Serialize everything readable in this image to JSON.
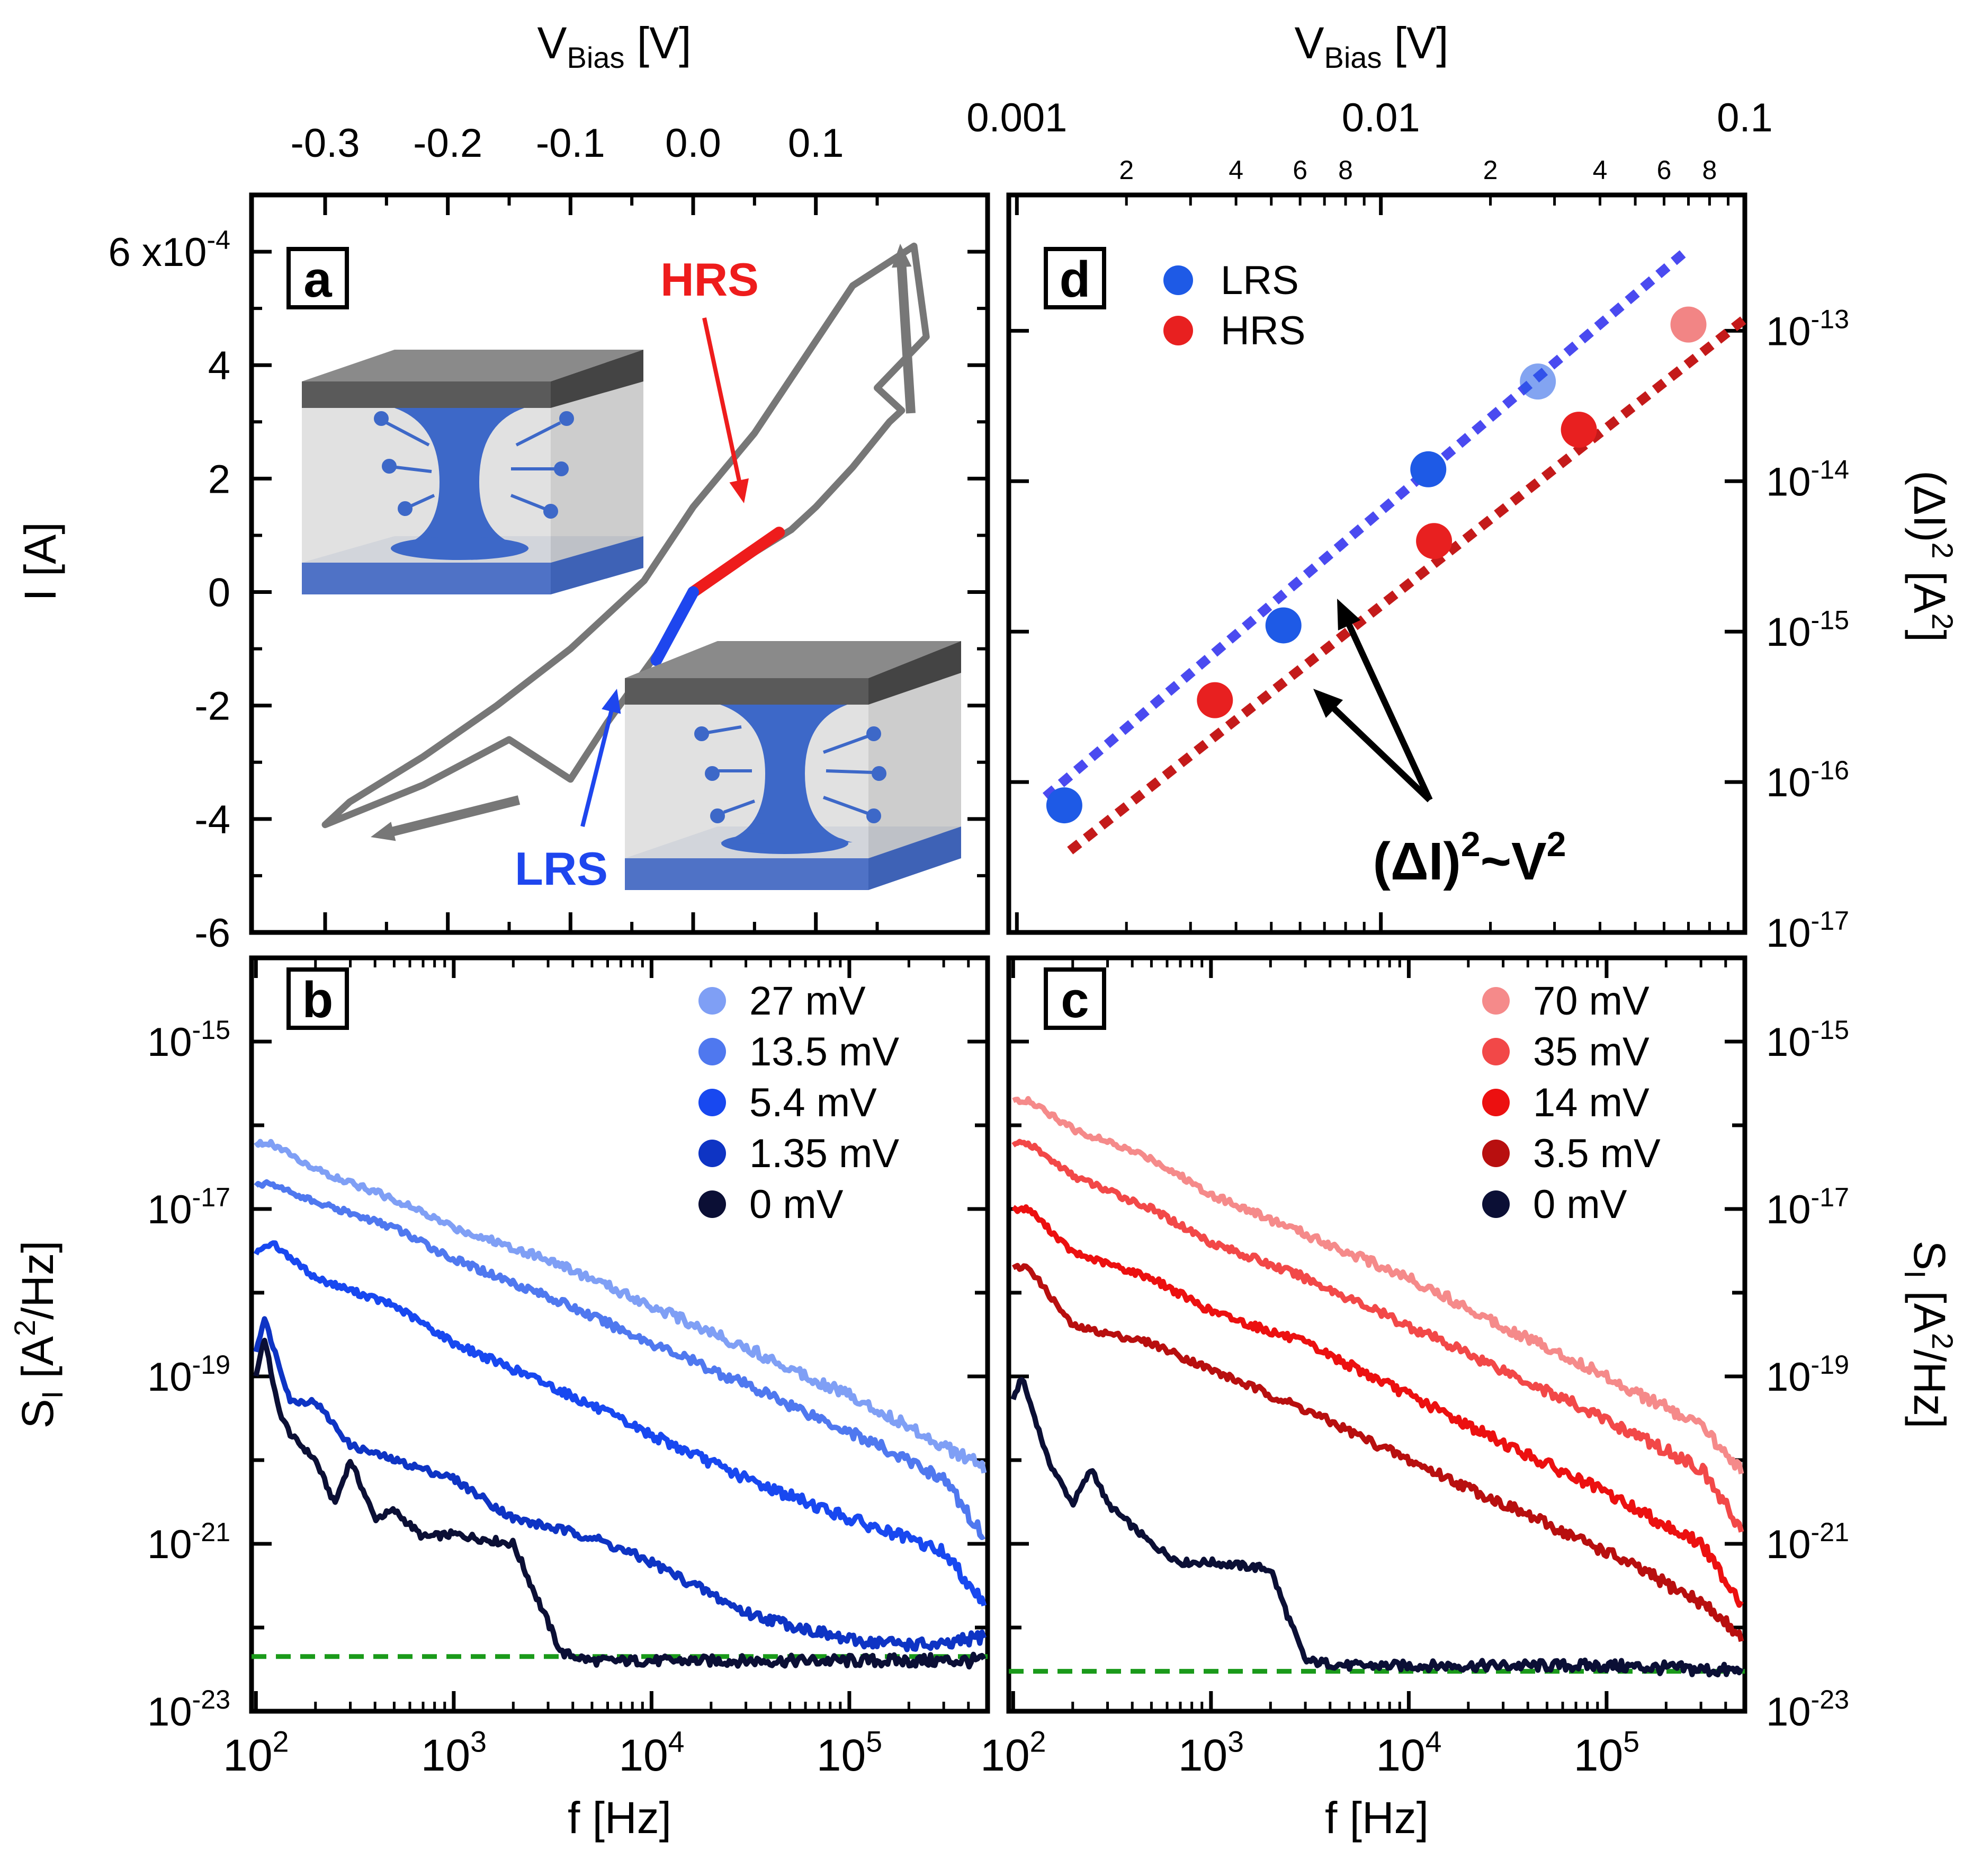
{
  "colors": {
    "iv": "#777777",
    "lrs_segment": "#1e46ee",
    "hrs_segment": "#ee1c1c",
    "lrs_fit": "#4a4af0",
    "hrs_fit": "#c41a1a",
    "lrs_points": "#1e5ae6",
    "hrs_points": "#e82020",
    "noise_floor": "#1a9a1a",
    "zero_mV": "#0b0f35"
  },
  "chart_data": [
    {
      "panel": "a",
      "type": "line",
      "title": "",
      "panel_label": "a",
      "xlabel": "V",
      "xlabel_sub": "Bias",
      "xlabel_unit": " [V]",
      "ylabel": "I [A]",
      "xlim": [
        -0.36,
        0.24
      ],
      "ylim": [
        -0.0006,
        0.0007
      ],
      "x_ticks": [
        -0.3,
        -0.2,
        -0.1,
        0.0,
        0.1
      ],
      "x_tick_labels": [
        "-0.3",
        "-0.2",
        "-0.1",
        "0.0",
        "0.1"
      ],
      "y_ticks": [
        -0.0006,
        -0.0004,
        -0.0002,
        0,
        0.0002,
        0.0004,
        0.0006
      ],
      "y_tick_labels": [
        "-6",
        "-4",
        "-2",
        "0",
        "2",
        "4",
        "6 x10"
      ],
      "y_tick_exponent": "-4",
      "annotations": [
        "HRS",
        "LRS"
      ],
      "series": [
        {
          "name": "I-V hysteresis loop",
          "x": [
            0.0,
            0.02,
            0.05,
            0.08,
            0.1,
            0.13,
            0.16,
            0.17,
            0.15,
            0.19,
            0.18,
            0.13,
            0.05,
            0.0,
            -0.04,
            -0.1,
            -0.16,
            -0.22,
            -0.28,
            -0.3,
            -0.22,
            -0.15,
            -0.1,
            -0.07,
            -0.03,
            0.0
          ],
          "y": [
            0.0,
            3e-05,
            7e-05,
            0.00011,
            0.00015,
            0.00022,
            0.0003,
            0.00032,
            0.00036,
            0.00045,
            0.00061,
            0.00054,
            0.00028,
            0.00015,
            2e-05,
            -0.0001,
            -0.0002,
            -0.00029,
            -0.00037,
            -0.00041,
            -0.00034,
            -0.00026,
            -0.00033,
            -0.00023,
            -0.00011,
            0.0
          ]
        },
        {
          "name": "HRS",
          "x": [
            0.0,
            0.07
          ],
          "y": [
            0.0,
            0.000105
          ]
        },
        {
          "name": "LRS",
          "x": [
            -0.03,
            0.0
          ],
          "y": [
            -0.00012,
            0.0
          ]
        }
      ]
    },
    {
      "panel": "b",
      "type": "line",
      "title": "",
      "panel_label": "b",
      "xlabel": "f [Hz]",
      "ylabel": "S",
      "ylabel_sub": "I",
      "ylabel_unit": " [A",
      "ylabel_sup": "2",
      "ylabel_tail": "/Hz]",
      "xscale": "log",
      "yscale": "log",
      "xlim": [
        95,
        500000
      ],
      "ylim": [
        1e-23,
        1e-14
      ],
      "x_ticks": [
        100,
        1000,
        10000,
        100000
      ],
      "x_tick_labels": [
        {
          "base": "10",
          "exp": "2"
        },
        {
          "base": "10",
          "exp": "3"
        },
        {
          "base": "10",
          "exp": "4"
        },
        {
          "base": "10",
          "exp": "5"
        }
      ],
      "y_ticks": [
        1e-15,
        1e-17,
        1e-19,
        1e-21,
        1e-23
      ],
      "y_tick_labels": [
        {
          "base": "10",
          "exp": "-15"
        },
        {
          "base": "10",
          "exp": "-17"
        },
        {
          "base": "10",
          "exp": "-19"
        },
        {
          "base": "10",
          "exp": "-21"
        },
        {
          "base": "10",
          "exp": "-23"
        }
      ],
      "noise_floor": 4.5e-23,
      "legend_position": "top-right",
      "series": [
        {
          "name": "27 mV",
          "color": "#7f9ff5",
          "x": [
            100,
            120,
            200,
            500,
            1000,
            3000,
            10000,
            30000,
            100000,
            300000,
            480000
          ],
          "y": [
            6e-17,
            6e-17,
            3e-17,
            1.3e-17,
            6e-18,
            2.5e-18,
            7e-19,
            2.2e-19,
            6e-20,
            1.5e-20,
            8e-21
          ]
        },
        {
          "name": "13.5 mV",
          "color": "#4f78ef",
          "x": [
            100,
            120,
            200,
            500,
            1000,
            3000,
            10000,
            30000,
            100000,
            300000,
            480000
          ],
          "y": [
            2e-17,
            2e-17,
            1.2e-17,
            6e-18,
            2.5e-18,
            9e-19,
            2.5e-19,
            8e-20,
            2.2e-20,
            6e-21,
            1.2e-21
          ]
        },
        {
          "name": "5.4 mV",
          "color": "#1848f0",
          "x": [
            100,
            120,
            200,
            500,
            1000,
            3000,
            10000,
            30000,
            100000,
            300000,
            480000
          ],
          "y": [
            3e-18,
            4e-18,
            1.5e-18,
            7e-19,
            2.5e-19,
            8e-20,
            2e-20,
            6e-21,
            2e-21,
            8e-22,
            2e-22
          ]
        },
        {
          "name": "1.35 mV",
          "color": "#0e34c4",
          "x": [
            100,
            110,
            150,
            200,
            300,
            500,
            1000,
            2000,
            5000,
            10000,
            30000,
            100000,
            300000,
            480000
          ],
          "y": [
            2e-19,
            5e-19,
            5e-20,
            5e-20,
            1.5e-20,
            1e-20,
            6e-21,
            2e-21,
            1.2e-21,
            6e-22,
            1.5e-22,
            7e-23,
            6e-23,
            8e-23
          ]
        },
        {
          "name": "0 mV",
          "color": "#0b0f35",
          "x": [
            100,
            110,
            130,
            150,
            200,
            250,
            300,
            400,
            500,
            700,
            1000,
            2000,
            2500,
            3500,
            5000,
            10000,
            100000,
            480000
          ],
          "y": [
            1e-19,
            3e-19,
            4e-20,
            2e-20,
            1e-20,
            3e-21,
            1e-20,
            2e-21,
            2.5e-21,
            1.2e-21,
            1.3e-21,
            1e-21,
            3e-22,
            5e-23,
            4e-23,
            4e-23,
            4e-23,
            4e-23
          ]
        }
      ]
    },
    {
      "panel": "c",
      "type": "line",
      "title": "",
      "panel_label": "c",
      "xlabel": "f [Hz]",
      "ylabel": "S",
      "ylabel_sub": "I",
      "ylabel_unit": " [A",
      "ylabel_sup": "2",
      "ylabel_tail": "/Hz]",
      "xscale": "log",
      "yscale": "log",
      "xlim": [
        95,
        500000
      ],
      "ylim": [
        1e-23,
        1e-14
      ],
      "x_ticks": [
        100,
        1000,
        10000,
        100000
      ],
      "x_tick_labels": [
        {
          "base": "10",
          "exp": "2"
        },
        {
          "base": "10",
          "exp": "3"
        },
        {
          "base": "10",
          "exp": "4"
        },
        {
          "base": "10",
          "exp": "5"
        }
      ],
      "y_ticks": [
        1e-15,
        1e-17,
        1e-19,
        1e-21,
        1e-23
      ],
      "y_tick_labels": [
        {
          "base": "10",
          "exp": "-15"
        },
        {
          "base": "10",
          "exp": "-17"
        },
        {
          "base": "10",
          "exp": "-19"
        },
        {
          "base": "10",
          "exp": "-21"
        },
        {
          "base": "10",
          "exp": "-23"
        }
      ],
      "noise_floor": 3e-23,
      "legend_position": "top-right",
      "series": [
        {
          "name": "70 mV",
          "color": "#f58a8a",
          "x": [
            100,
            120,
            200,
            500,
            1000,
            3000,
            10000,
            30000,
            100000,
            300000,
            480000
          ],
          "y": [
            2e-16,
            2e-16,
            9e-17,
            4e-17,
            1.5e-17,
            5e-18,
            1.5e-18,
            4e-19,
            1e-19,
            2.5e-20,
            8e-21
          ]
        },
        {
          "name": "35 mV",
          "color": "#f24848",
          "x": [
            100,
            120,
            200,
            500,
            1000,
            3000,
            10000,
            30000,
            100000,
            300000,
            480000
          ],
          "y": [
            6e-17,
            6e-17,
            2.5e-17,
            1e-17,
            4e-18,
            1.5e-18,
            4e-19,
            1.2e-19,
            3e-20,
            8e-21,
            1.5e-21
          ]
        },
        {
          "name": "14 mV",
          "color": "#ec1010",
          "x": [
            100,
            120,
            200,
            500,
            1000,
            3000,
            10000,
            30000,
            100000,
            300000,
            480000
          ],
          "y": [
            1e-17,
            1e-17,
            3e-18,
            1.5e-18,
            6e-19,
            2.5e-19,
            6e-20,
            1.6e-20,
            4e-21,
            1e-21,
            2e-22
          ]
        },
        {
          "name": "3.5 mV",
          "color": "#b80f0f",
          "x": [
            100,
            120,
            200,
            500,
            1000,
            3000,
            10000,
            30000,
            100000,
            300000,
            480000
          ],
          "y": [
            2e-18,
            2e-18,
            4e-19,
            2.5e-19,
            1.2e-19,
            4e-20,
            1e-20,
            3e-21,
            8e-22,
            2e-22,
            8e-23
          ]
        },
        {
          "name": "0 mV",
          "color": "#0b0f35",
          "x": [
            100,
            110,
            130,
            150,
            200,
            250,
            300,
            500,
            700,
            1000,
            2000,
            2500,
            3000,
            5000,
            10000,
            100000,
            480000
          ],
          "y": [
            5e-20,
            1e-19,
            3e-20,
            1e-20,
            3e-21,
            8e-21,
            3e-21,
            1e-21,
            6e-22,
            6e-22,
            5e-22,
            1.2e-22,
            4e-23,
            3.5e-23,
            3.5e-23,
            3.5e-23,
            3e-23
          ]
        }
      ]
    },
    {
      "panel": "d",
      "type": "scatter",
      "title": "",
      "panel_label": "d",
      "xlabel": "V",
      "xlabel_sub": "Bias",
      "xlabel_unit": " [V]",
      "ylabel": "(ΔI)",
      "ylabel_sup": "2",
      "ylabel_unit": " [A",
      "ylabel_sup2": "2",
      "ylabel_tail": "]",
      "xscale": "log",
      "yscale": "log",
      "xlim": [
        0.00095,
        0.1
      ],
      "ylim": [
        1e-17,
        8e-13
      ],
      "x_ticks_major": [
        0.001,
        0.01,
        0.1
      ],
      "x_tick_labels_major": [
        "0.001",
        "0.01",
        "0.1"
      ],
      "x_ticks_minor": [
        0.002,
        0.004,
        0.006,
        0.008,
        0.02,
        0.04,
        0.06,
        0.08
      ],
      "x_tick_labels_minor": [
        "2",
        "4",
        "6",
        "8",
        "2",
        "4",
        "6",
        "8"
      ],
      "y_ticks": [
        1e-13,
        1e-14,
        1e-15,
        1e-16,
        1e-17
      ],
      "y_tick_labels": [
        {
          "base": "10",
          "exp": "-13"
        },
        {
          "base": "10",
          "exp": "-14"
        },
        {
          "base": "10",
          "exp": "-15"
        },
        {
          "base": "10",
          "exp": "-16"
        },
        {
          "base": "10",
          "exp": "-17"
        }
      ],
      "legend_position": "top-left",
      "annotation": {
        "text": "(ΔI)",
        "sup": "2",
        "mid": "~V",
        "sup2": "2"
      },
      "series": [
        {
          "name": "LRS",
          "color": "#1e5ae6",
          "x": [
            0.00135,
            0.0054,
            0.0135,
            0.027
          ],
          "y": [
            7e-17,
            1.1e-15,
            1.2e-14,
            4.6e-14
          ],
          "fit": {
            "x": [
              0.0012,
              0.07
            ],
            "y": [
              8e-17,
              3.5e-13
            ]
          }
        },
        {
          "name": "HRS",
          "color": "#e82020",
          "x": [
            0.0035,
            0.014,
            0.035,
            0.07
          ],
          "y": [
            3.5e-16,
            4e-15,
            2.2e-14,
            1.1e-13
          ],
          "fit": {
            "x": [
              0.0014,
              0.1
            ],
            "y": [
              3.5e-17,
              1.2e-13
            ]
          }
        }
      ]
    }
  ]
}
